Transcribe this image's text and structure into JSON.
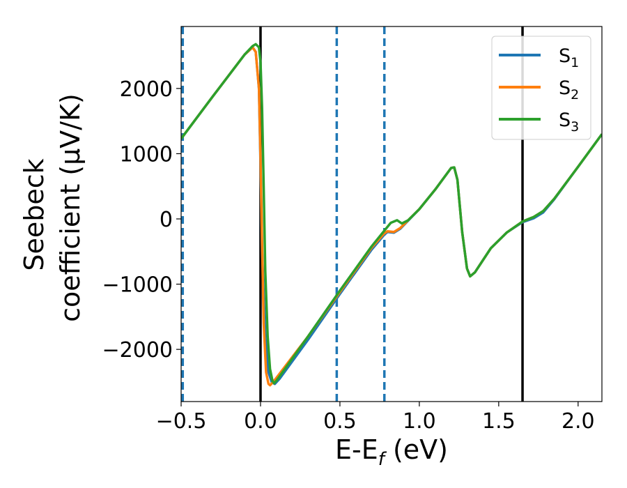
{
  "chart_data": {
    "type": "line",
    "title": "",
    "xlabel": {
      "main": "E-E",
      "sub": "f",
      "rest": " (eV)"
    },
    "ylabel": {
      "line1": "Seebeck",
      "line2": "coefficient  (μV/K)"
    },
    "xlim": [
      -0.5,
      2.15
    ],
    "ylim": [
      -2800,
      2950
    ],
    "xticks": [
      -0.5,
      0.0,
      0.5,
      1.0,
      1.5,
      2.0
    ],
    "xtick_labels": [
      "−0.5",
      "0.0",
      "0.5",
      "1.0",
      "1.5",
      "2.0"
    ],
    "yticks": [
      -2000,
      -1000,
      0,
      1000,
      2000
    ],
    "ytick_labels": [
      "−2000",
      "−1000",
      "0",
      "1000",
      "2000"
    ],
    "grid": false,
    "legend_position": "top-right",
    "vlines_solid": [
      0.0,
      1.65
    ],
    "vlines_dashed": [
      -0.49,
      0.48,
      0.78
    ],
    "series": [
      {
        "name": "S",
        "sub": "1",
        "color": "#1f77b4",
        "points": [
          [
            -0.5,
            1230
          ],
          [
            -0.3,
            1880
          ],
          [
            -0.1,
            2520
          ],
          [
            -0.05,
            2630
          ],
          [
            -0.03,
            2560
          ],
          [
            -0.01,
            2000
          ],
          [
            0.0,
            800
          ],
          [
            0.01,
            -500
          ],
          [
            0.03,
            -1800
          ],
          [
            0.05,
            -2350
          ],
          [
            0.07,
            -2500
          ],
          [
            0.09,
            -2530
          ],
          [
            0.12,
            -2450
          ],
          [
            0.3,
            -1850
          ],
          [
            0.5,
            -1150
          ],
          [
            0.7,
            -470
          ],
          [
            0.78,
            -240
          ],
          [
            0.8,
            -200
          ],
          [
            0.84,
            -210
          ],
          [
            0.88,
            -150
          ],
          [
            1.0,
            150
          ],
          [
            1.1,
            450
          ],
          [
            1.2,
            780
          ],
          [
            1.22,
            790
          ],
          [
            1.24,
            600
          ],
          [
            1.27,
            -200
          ],
          [
            1.3,
            -760
          ],
          [
            1.32,
            -880
          ],
          [
            1.35,
            -820
          ],
          [
            1.45,
            -450
          ],
          [
            1.55,
            -210
          ],
          [
            1.65,
            -50
          ],
          [
            1.72,
            10
          ],
          [
            1.78,
            100
          ],
          [
            1.85,
            300
          ],
          [
            2.0,
            800
          ],
          [
            2.15,
            1300
          ]
        ]
      },
      {
        "name": "S",
        "sub": "2",
        "color": "#ff7f0e",
        "points": [
          [
            -0.5,
            1230
          ],
          [
            -0.3,
            1880
          ],
          [
            -0.1,
            2520
          ],
          [
            -0.05,
            2630
          ],
          [
            -0.03,
            2560
          ],
          [
            -0.01,
            2000
          ],
          [
            0.0,
            900
          ],
          [
            0.01,
            -400
          ],
          [
            0.02,
            -1600
          ],
          [
            0.035,
            -2350
          ],
          [
            0.05,
            -2530
          ],
          [
            0.06,
            -2550
          ],
          [
            0.08,
            -2500
          ],
          [
            0.3,
            -1800
          ],
          [
            0.5,
            -1120
          ],
          [
            0.7,
            -440
          ],
          [
            0.78,
            -220
          ],
          [
            0.8,
            -190
          ],
          [
            0.84,
            -200
          ],
          [
            0.88,
            -140
          ],
          [
            1.0,
            150
          ],
          [
            1.1,
            450
          ],
          [
            1.2,
            780
          ],
          [
            1.22,
            790
          ],
          [
            1.24,
            600
          ],
          [
            1.27,
            -200
          ],
          [
            1.3,
            -760
          ],
          [
            1.32,
            -880
          ],
          [
            1.35,
            -820
          ],
          [
            1.45,
            -450
          ],
          [
            1.55,
            -210
          ],
          [
            1.65,
            -40
          ],
          [
            1.72,
            30
          ],
          [
            1.78,
            120
          ],
          [
            1.85,
            310
          ],
          [
            2.0,
            800
          ],
          [
            2.15,
            1300
          ]
        ]
      },
      {
        "name": "S",
        "sub": "3",
        "color": "#2ca02c",
        "points": [
          [
            -0.5,
            1230
          ],
          [
            -0.3,
            1880
          ],
          [
            -0.1,
            2520
          ],
          [
            -0.05,
            2650
          ],
          [
            -0.03,
            2680
          ],
          [
            -0.01,
            2630
          ],
          [
            0.0,
            2400
          ],
          [
            0.01,
            1700
          ],
          [
            0.02,
            500
          ],
          [
            0.03,
            -800
          ],
          [
            0.045,
            -1800
          ],
          [
            0.06,
            -2300
          ],
          [
            0.075,
            -2480
          ],
          [
            0.085,
            -2520
          ],
          [
            0.1,
            -2480
          ],
          [
            0.3,
            -1800
          ],
          [
            0.5,
            -1100
          ],
          [
            0.7,
            -420
          ],
          [
            0.78,
            -180
          ],
          [
            0.82,
            -60
          ],
          [
            0.86,
            -20
          ],
          [
            0.89,
            -70
          ],
          [
            0.93,
            -20
          ],
          [
            1.0,
            150
          ],
          [
            1.1,
            450
          ],
          [
            1.2,
            780
          ],
          [
            1.22,
            790
          ],
          [
            1.24,
            600
          ],
          [
            1.27,
            -200
          ],
          [
            1.3,
            -760
          ],
          [
            1.32,
            -880
          ],
          [
            1.35,
            -820
          ],
          [
            1.45,
            -450
          ],
          [
            1.55,
            -210
          ],
          [
            1.65,
            -40
          ],
          [
            1.72,
            30
          ],
          [
            1.78,
            120
          ],
          [
            1.85,
            310
          ],
          [
            2.0,
            800
          ],
          [
            2.15,
            1300
          ]
        ]
      }
    ]
  }
}
